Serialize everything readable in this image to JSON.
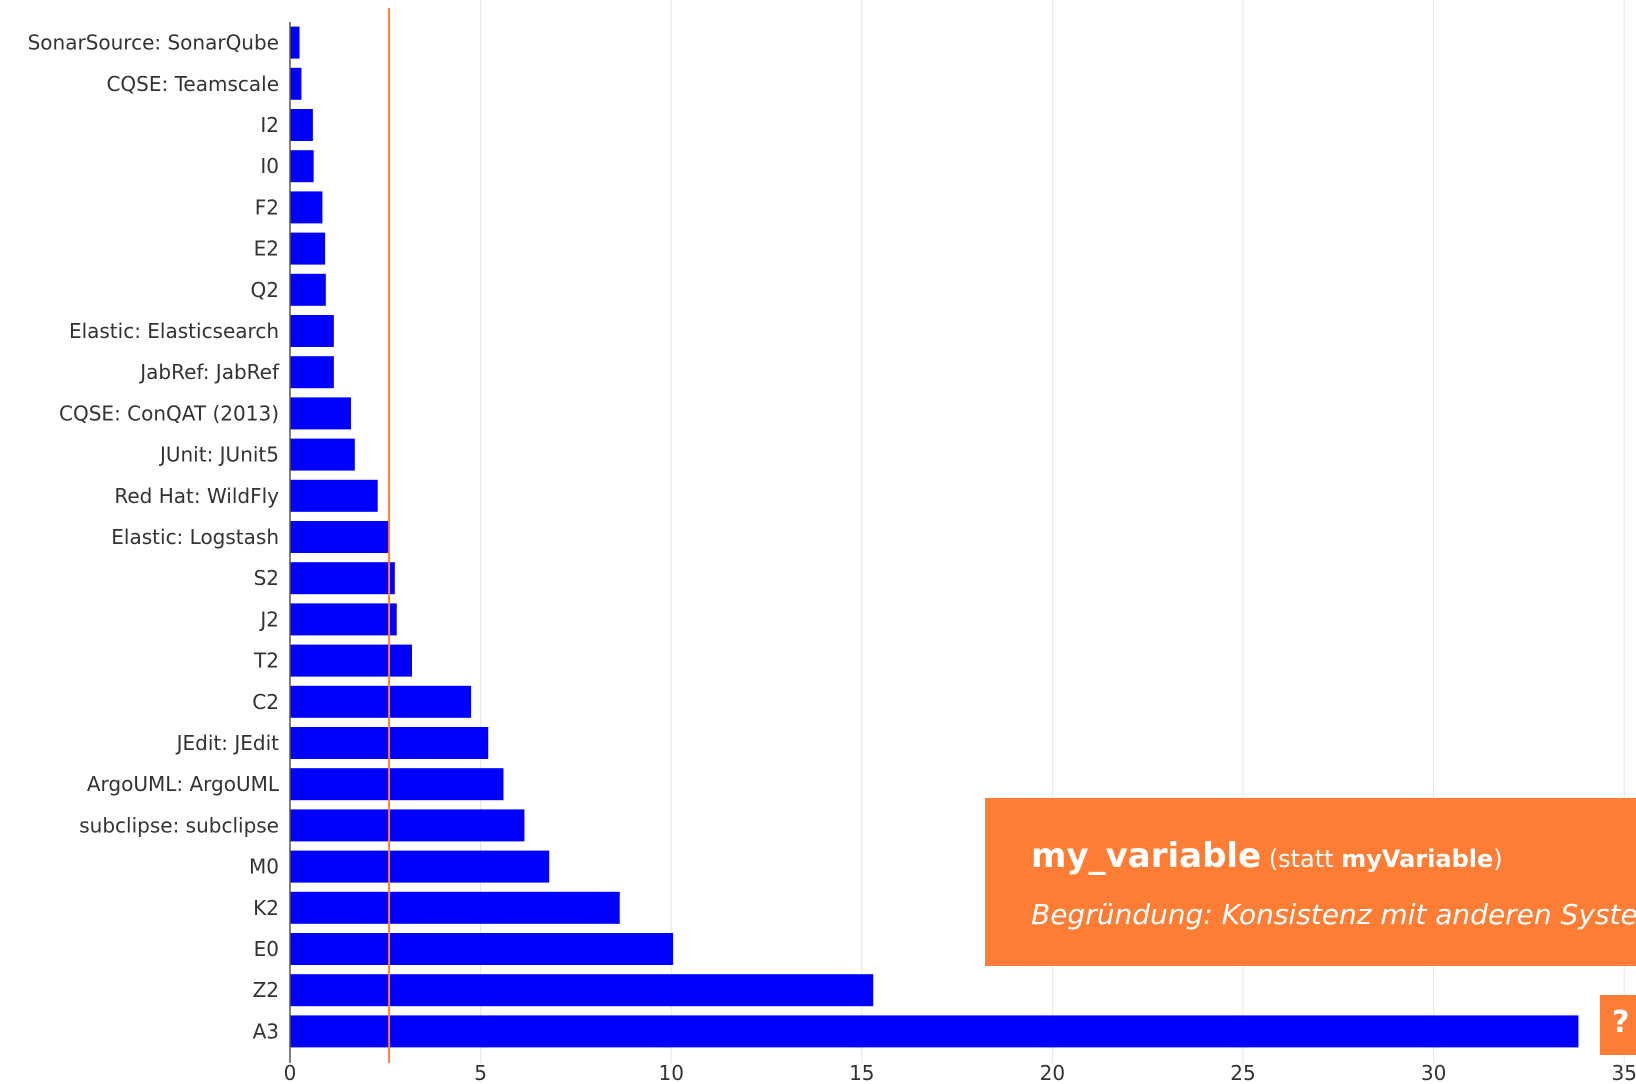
{
  "chart_data": {
    "type": "bar",
    "orientation": "horizontal",
    "categories": [
      "SonarSource: SonarQube",
      "CQSE: Teamscale",
      "I2",
      "I0",
      "F2",
      "E2",
      "Q2",
      "Elastic: Elasticsearch",
      "JabRef: JabRef",
      "CQSE: ConQAT (2013)",
      "JUnit: JUnit5",
      "Red Hat: WildFly",
      "Elastic: Logstash",
      "S2",
      "J2",
      "T2",
      "C2",
      "JEdit: JEdit",
      "ArgoUML: ArgoUML",
      "subclipse: subclipse",
      "M0",
      "K2",
      "E0",
      "Z2",
      "A3"
    ],
    "values": [
      0.25,
      0.3,
      0.6,
      0.62,
      0.85,
      0.92,
      0.94,
      1.15,
      1.15,
      1.6,
      1.7,
      2.3,
      2.6,
      2.75,
      2.8,
      3.2,
      4.75,
      5.2,
      5.6,
      6.15,
      6.8,
      8.65,
      10.05,
      15.3,
      33.8
    ],
    "xlim": [
      0,
      35
    ],
    "xticks": [
      "0",
      "5",
      "10",
      "15",
      "20",
      "25",
      "30",
      "35"
    ],
    "reference_line": 2.6,
    "grid": "vertical",
    "bar_color": "#0000ff",
    "reference_color": "#fe7d34",
    "title": "",
    "xlabel": "",
    "ylabel": ""
  },
  "callout": {
    "code": "my_variable",
    "paren_open": "(statt ",
    "code2": "myVariable",
    "paren_close": ")",
    "reason": "Begründung: Konsistenz mit anderen Systemen",
    "color": "#fe7d34"
  },
  "help_button": {
    "label": "?"
  }
}
